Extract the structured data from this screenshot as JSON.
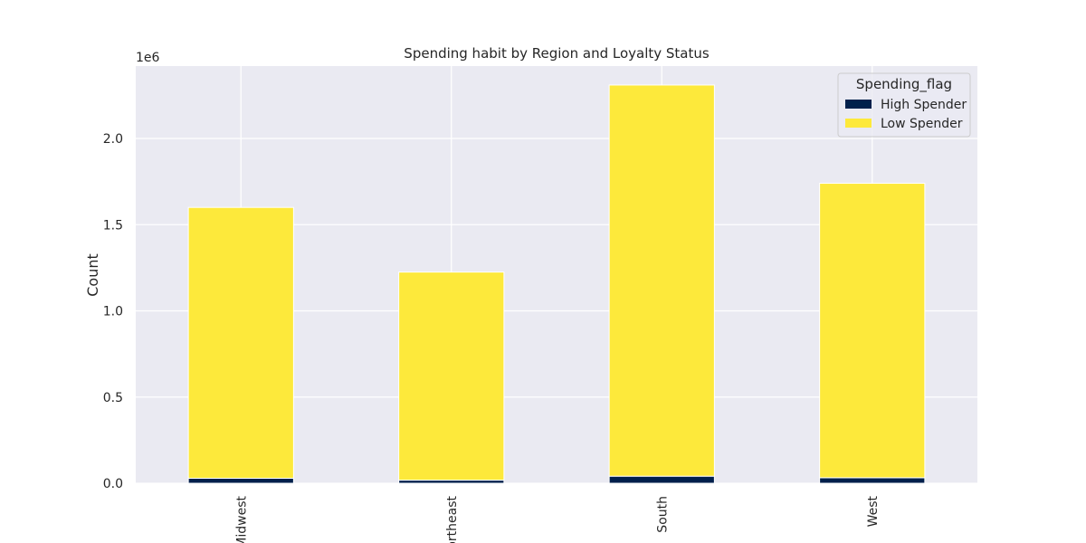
{
  "chart_data": {
    "type": "bar",
    "stacked": true,
    "title": "Spending habit by Region and Loyalty Status",
    "xlabel": "",
    "ylabel": "Count",
    "y_multiplier_label": "1e6",
    "categories": [
      "Midwest",
      "Northeast",
      "South",
      "West"
    ],
    "series": [
      {
        "name": "High Spender",
        "color": "#00204c",
        "values": [
          29000,
          18000,
          41000,
          32000
        ]
      },
      {
        "name": "Low Spender",
        "color": "#fde93b",
        "values": [
          1571000,
          1207000,
          2269000,
          1708000
        ]
      }
    ],
    "ylim": [
      0,
      2420000
    ],
    "yticks": [
      0,
      500000,
      1000000,
      1500000,
      2000000
    ],
    "ytick_labels": [
      "0.0",
      "0.5",
      "1.0",
      "1.5",
      "2.0"
    ],
    "grid": true,
    "legend": {
      "title": "Spending_flag",
      "placement": "top-right"
    },
    "background_color": "#eaeaf2"
  }
}
